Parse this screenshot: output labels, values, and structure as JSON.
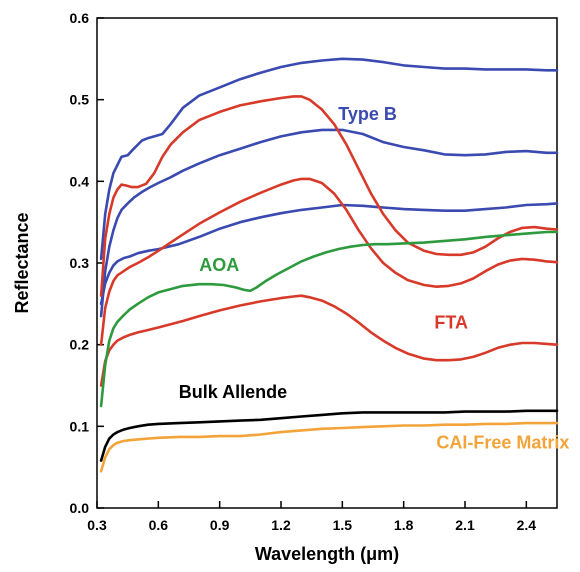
{
  "chart_data": {
    "type": "line",
    "xlabel": "Wavelength (μm)",
    "ylabel": "Reflectance",
    "xlim": [
      0.3,
      2.55
    ],
    "ylim": [
      0.0,
      0.6
    ],
    "x_ticks": [
      0.3,
      0.6,
      0.9,
      1.2,
      1.5,
      1.8,
      2.1,
      2.4
    ],
    "x_tick_labels": [
      "0.3",
      "0.6",
      "0.9",
      "1.2",
      "1.5",
      "1.8",
      "2.1",
      "2.4"
    ],
    "y_ticks": [
      0.0,
      0.1,
      0.2,
      0.3,
      0.4,
      0.5,
      0.6
    ],
    "y_tick_labels": [
      "0.0",
      "0.1",
      "0.2",
      "0.3",
      "0.4",
      "0.5",
      "0.6"
    ],
    "grid": false,
    "annotations": [
      {
        "text": "Type B",
        "color": "#3a4ab0",
        "x": 1.48,
        "y": 0.475
      },
      {
        "text": "AOA",
        "color": "#2e9a3e",
        "x": 0.8,
        "y": 0.29
      },
      {
        "text": "FTA",
        "color": "#d83a2a",
        "x": 1.95,
        "y": 0.22
      },
      {
        "text": "Bulk Allende",
        "color": "#000000",
        "x": 0.7,
        "y": 0.135
      },
      {
        "text": "CAI-Free Matrix",
        "color": "#f2a43a",
        "x": 1.96,
        "y": 0.073
      }
    ],
    "series": [
      {
        "group": "Type B",
        "color": "#3a4ab0",
        "x": [
          0.32,
          0.34,
          0.36,
          0.38,
          0.4,
          0.42,
          0.45,
          0.48,
          0.52,
          0.55,
          0.58,
          0.62,
          0.66,
          0.72,
          0.8,
          0.9,
          1.0,
          1.1,
          1.2,
          1.3,
          1.4,
          1.5,
          1.6,
          1.7,
          1.8,
          1.9,
          2.0,
          2.1,
          2.2,
          2.3,
          2.4,
          2.5,
          2.55
        ],
        "y": [
          0.305,
          0.36,
          0.39,
          0.41,
          0.42,
          0.43,
          0.432,
          0.44,
          0.45,
          0.453,
          0.455,
          0.458,
          0.47,
          0.49,
          0.505,
          0.515,
          0.525,
          0.533,
          0.54,
          0.545,
          0.548,
          0.55,
          0.549,
          0.546,
          0.542,
          0.54,
          0.538,
          0.538,
          0.537,
          0.537,
          0.537,
          0.536,
          0.536
        ]
      },
      {
        "group": "Type B",
        "color": "#3a4ab0",
        "x": [
          0.32,
          0.34,
          0.36,
          0.38,
          0.4,
          0.42,
          0.45,
          0.48,
          0.52,
          0.56,
          0.6,
          0.66,
          0.72,
          0.8,
          0.9,
          1.0,
          1.1,
          1.2,
          1.3,
          1.4,
          1.5,
          1.6,
          1.7,
          1.8,
          1.9,
          2.0,
          2.1,
          2.2,
          2.3,
          2.4,
          2.5,
          2.55
        ],
        "y": [
          0.235,
          0.29,
          0.32,
          0.34,
          0.355,
          0.365,
          0.373,
          0.38,
          0.387,
          0.393,
          0.398,
          0.405,
          0.413,
          0.422,
          0.432,
          0.44,
          0.448,
          0.455,
          0.46,
          0.463,
          0.463,
          0.458,
          0.448,
          0.442,
          0.438,
          0.433,
          0.432,
          0.433,
          0.436,
          0.437,
          0.435,
          0.435
        ]
      },
      {
        "group": "Type B",
        "color": "#3a4ab0",
        "x": [
          0.32,
          0.34,
          0.36,
          0.38,
          0.4,
          0.43,
          0.46,
          0.5,
          0.55,
          0.6,
          0.7,
          0.8,
          0.9,
          1.0,
          1.1,
          1.2,
          1.3,
          1.4,
          1.5,
          1.6,
          1.7,
          1.8,
          1.9,
          2.0,
          2.1,
          2.2,
          2.3,
          2.4,
          2.5,
          2.55
        ],
        "y": [
          0.25,
          0.275,
          0.288,
          0.297,
          0.302,
          0.306,
          0.308,
          0.312,
          0.315,
          0.317,
          0.323,
          0.332,
          0.342,
          0.35,
          0.356,
          0.361,
          0.365,
          0.368,
          0.371,
          0.37,
          0.368,
          0.366,
          0.365,
          0.364,
          0.364,
          0.366,
          0.368,
          0.371,
          0.372,
          0.373
        ]
      },
      {
        "group": "FTA",
        "color": "#d83a2a",
        "x": [
          0.32,
          0.34,
          0.36,
          0.38,
          0.4,
          0.42,
          0.44,
          0.47,
          0.5,
          0.54,
          0.58,
          0.62,
          0.66,
          0.72,
          0.8,
          0.9,
          1.0,
          1.1,
          1.2,
          1.26,
          1.3,
          1.34,
          1.4,
          1.46,
          1.52,
          1.58,
          1.64,
          1.7,
          1.76,
          1.82,
          1.9,
          1.96,
          2.02,
          2.08,
          2.14,
          2.2,
          2.26,
          2.32,
          2.38,
          2.44,
          2.5,
          2.55
        ],
        "y": [
          0.26,
          0.33,
          0.36,
          0.38,
          0.39,
          0.396,
          0.395,
          0.393,
          0.393,
          0.397,
          0.41,
          0.43,
          0.445,
          0.46,
          0.475,
          0.485,
          0.493,
          0.498,
          0.502,
          0.504,
          0.504,
          0.5,
          0.488,
          0.47,
          0.445,
          0.415,
          0.385,
          0.36,
          0.34,
          0.325,
          0.315,
          0.311,
          0.31,
          0.31,
          0.313,
          0.32,
          0.33,
          0.338,
          0.343,
          0.344,
          0.342,
          0.341
        ]
      },
      {
        "group": "FTA",
        "color": "#d83a2a",
        "x": [
          0.32,
          0.34,
          0.36,
          0.38,
          0.4,
          0.43,
          0.46,
          0.5,
          0.55,
          0.6,
          0.66,
          0.72,
          0.8,
          0.9,
          1.0,
          1.1,
          1.2,
          1.26,
          1.3,
          1.34,
          1.4,
          1.46,
          1.52,
          1.58,
          1.64,
          1.7,
          1.76,
          1.82,
          1.9,
          1.96,
          2.02,
          2.08,
          2.14,
          2.2,
          2.26,
          2.32,
          2.38,
          2.44,
          2.5,
          2.55
        ],
        "y": [
          0.2,
          0.245,
          0.265,
          0.278,
          0.285,
          0.29,
          0.295,
          0.3,
          0.307,
          0.315,
          0.325,
          0.335,
          0.348,
          0.362,
          0.375,
          0.386,
          0.396,
          0.401,
          0.403,
          0.403,
          0.398,
          0.385,
          0.365,
          0.34,
          0.318,
          0.3,
          0.288,
          0.279,
          0.273,
          0.271,
          0.272,
          0.275,
          0.281,
          0.29,
          0.298,
          0.303,
          0.305,
          0.304,
          0.302,
          0.301
        ]
      },
      {
        "group": "FTA",
        "color": "#d83a2a",
        "x": [
          0.32,
          0.34,
          0.36,
          0.38,
          0.4,
          0.43,
          0.46,
          0.5,
          0.55,
          0.6,
          0.66,
          0.72,
          0.8,
          0.9,
          1.0,
          1.1,
          1.2,
          1.26,
          1.3,
          1.34,
          1.4,
          1.46,
          1.52,
          1.58,
          1.64,
          1.7,
          1.76,
          1.82,
          1.9,
          1.96,
          2.02,
          2.08,
          2.14,
          2.2,
          2.26,
          2.32,
          2.38,
          2.44,
          2.5,
          2.55
        ],
        "y": [
          0.15,
          0.18,
          0.193,
          0.2,
          0.205,
          0.209,
          0.212,
          0.215,
          0.218,
          0.221,
          0.225,
          0.229,
          0.235,
          0.242,
          0.248,
          0.253,
          0.257,
          0.259,
          0.26,
          0.258,
          0.254,
          0.247,
          0.238,
          0.227,
          0.215,
          0.205,
          0.196,
          0.189,
          0.183,
          0.181,
          0.181,
          0.182,
          0.185,
          0.19,
          0.196,
          0.2,
          0.202,
          0.202,
          0.201,
          0.2
        ]
      },
      {
        "group": "AOA",
        "color": "#2e9a3e",
        "x": [
          0.32,
          0.34,
          0.36,
          0.38,
          0.4,
          0.43,
          0.46,
          0.5,
          0.55,
          0.6,
          0.66,
          0.72,
          0.8,
          0.86,
          0.92,
          0.98,
          1.02,
          1.05,
          1.08,
          1.12,
          1.18,
          1.24,
          1.3,
          1.36,
          1.42,
          1.48,
          1.54,
          1.6,
          1.66,
          1.72,
          1.8,
          1.9,
          2.0,
          2.1,
          2.2,
          2.3,
          2.4,
          2.5,
          2.55
        ],
        "y": [
          0.125,
          0.175,
          0.205,
          0.22,
          0.228,
          0.236,
          0.243,
          0.25,
          0.258,
          0.264,
          0.268,
          0.272,
          0.274,
          0.274,
          0.273,
          0.27,
          0.267,
          0.266,
          0.27,
          0.277,
          0.286,
          0.294,
          0.302,
          0.308,
          0.313,
          0.317,
          0.32,
          0.322,
          0.323,
          0.323,
          0.324,
          0.325,
          0.327,
          0.329,
          0.332,
          0.334,
          0.336,
          0.338,
          0.338
        ]
      },
      {
        "group": "Bulk Allende",
        "color": "#000000",
        "x": [
          0.32,
          0.34,
          0.36,
          0.38,
          0.4,
          0.43,
          0.46,
          0.5,
          0.55,
          0.6,
          0.7,
          0.8,
          0.9,
          1.0,
          1.1,
          1.2,
          1.3,
          1.4,
          1.5,
          1.6,
          1.7,
          1.8,
          1.9,
          2.0,
          2.1,
          2.2,
          2.3,
          2.4,
          2.5,
          2.55
        ],
        "y": [
          0.058,
          0.075,
          0.085,
          0.09,
          0.093,
          0.096,
          0.098,
          0.1,
          0.102,
          0.103,
          0.104,
          0.105,
          0.106,
          0.107,
          0.108,
          0.11,
          0.112,
          0.114,
          0.116,
          0.117,
          0.117,
          0.117,
          0.117,
          0.117,
          0.118,
          0.118,
          0.118,
          0.119,
          0.119,
          0.119
        ]
      },
      {
        "group": "CAI-Free Matrix",
        "color": "#f2a43a",
        "x": [
          0.32,
          0.34,
          0.36,
          0.38,
          0.4,
          0.43,
          0.46,
          0.5,
          0.55,
          0.6,
          0.7,
          0.8,
          0.9,
          1.0,
          1.1,
          1.2,
          1.3,
          1.4,
          1.5,
          1.6,
          1.7,
          1.8,
          1.9,
          2.0,
          2.1,
          2.2,
          2.3,
          2.4,
          2.5,
          2.55
        ],
        "y": [
          0.045,
          0.062,
          0.072,
          0.077,
          0.08,
          0.082,
          0.083,
          0.084,
          0.085,
          0.086,
          0.087,
          0.087,
          0.088,
          0.088,
          0.09,
          0.093,
          0.095,
          0.097,
          0.098,
          0.099,
          0.1,
          0.101,
          0.101,
          0.102,
          0.102,
          0.103,
          0.103,
          0.104,
          0.104,
          0.104
        ]
      }
    ]
  }
}
